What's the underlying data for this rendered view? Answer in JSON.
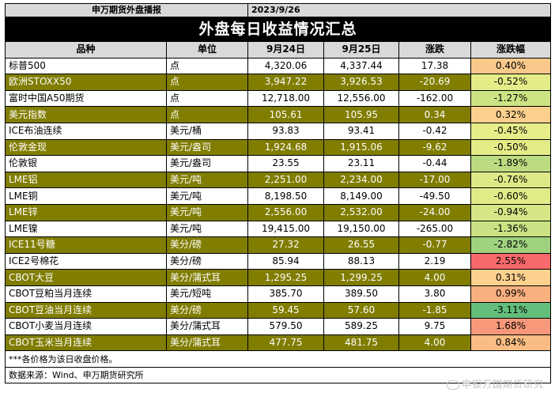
{
  "header": {
    "source_name": "申万期货外盘播报",
    "date": "2023/9/26"
  },
  "title": "外盘每日收益情况汇总",
  "columns": [
    "品种",
    "单位",
    "9月24日",
    "9月25日",
    "涨跌",
    "涨跌幅"
  ],
  "rows": [
    {
      "name": "标普500",
      "unit": "点",
      "d1": "4,320.06",
      "d2": "4,337.44",
      "chg": "17.38",
      "pct": "0.40%",
      "pct_color": "#f9c98b",
      "shade": false
    },
    {
      "name": "欧洲STOXX50",
      "unit": "点",
      "d1": "3,947.22",
      "d2": "3,926.53",
      "chg": "-20.69",
      "pct": "-0.52%",
      "pct_color": "#e4ec88",
      "shade": true
    },
    {
      "name": "富时中国A50期货",
      "unit": "点",
      "d1": "12,718.00",
      "d2": "12,556.00",
      "chg": "-162.00",
      "pct": "-1.27%",
      "pct_color": "#cde484",
      "shade": false
    },
    {
      "name": "美元指数",
      "unit": "点",
      "d1": "105.61",
      "d2": "105.95",
      "chg": "0.34",
      "pct": "0.32%",
      "pct_color": "#fbd08d",
      "shade": true
    },
    {
      "name": "ICE布油连续",
      "unit": "美元/桶",
      "d1": "93.83",
      "d2": "93.41",
      "chg": "-0.42",
      "pct": "-0.45%",
      "pct_color": "#e6ed89",
      "shade": false
    },
    {
      "name": "伦敦金现",
      "unit": "美元/盎司",
      "d1": "1,924.68",
      "d2": "1,915.06",
      "chg": "-9.62",
      "pct": "-0.50%",
      "pct_color": "#e4ec88",
      "shade": true
    },
    {
      "name": "伦敦银",
      "unit": "美元/盎司",
      "d1": "23.55",
      "d2": "23.11",
      "chg": "-0.44",
      "pct": "-1.89%",
      "pct_color": "#bcdc81",
      "shade": false
    },
    {
      "name": "LME铝",
      "unit": "美元/吨",
      "d1": "2,251.00",
      "d2": "2,234.00",
      "chg": "-17.00",
      "pct": "-0.76%",
      "pct_color": "#dde987",
      "shade": true
    },
    {
      "name": "LME铜",
      "unit": "美元/吨",
      "d1": "8,198.50",
      "d2": "8,149.00",
      "chg": "-49.50",
      "pct": "-0.60%",
      "pct_color": "#e1eb88",
      "shade": false
    },
    {
      "name": "LME锌",
      "unit": "美元/吨",
      "d1": "2,556.00",
      "d2": "2,532.00",
      "chg": "-24.00",
      "pct": "-0.94%",
      "pct_color": "#d6e686",
      "shade": true
    },
    {
      "name": "LME镍",
      "unit": "美元/吨",
      "d1": "19,415.00",
      "d2": "19,150.00",
      "chg": "-265.00",
      "pct": "-1.36%",
      "pct_color": "#cae283",
      "shade": false
    },
    {
      "name": "ICE11号糖",
      "unit": "美分/磅",
      "d1": "27.32",
      "d2": "26.55",
      "chg": "-0.77",
      "pct": "-2.82%",
      "pct_color": "#9fd27e",
      "shade": true
    },
    {
      "name": "ICE2号棉花",
      "unit": "美分/磅",
      "d1": "85.94",
      "d2": "88.13",
      "chg": "2.19",
      "pct": "2.55%",
      "pct_color": "#f8696b",
      "shade": false
    },
    {
      "name": "CBOT大豆",
      "unit": "美分/蒲式耳",
      "d1": "1,295.25",
      "d2": "1,299.25",
      "chg": "4.00",
      "pct": "0.31%",
      "pct_color": "#fbd18d",
      "shade": true
    },
    {
      "name": "CBOT豆粕当月连续",
      "unit": "美元/短吨",
      "d1": "385.70",
      "d2": "389.50",
      "chg": "3.80",
      "pct": "0.99%",
      "pct_color": "#f9b07f",
      "shade": false
    },
    {
      "name": "CBOT豆油当月连续",
      "unit": "美分/磅",
      "d1": "59.45",
      "d2": "57.60",
      "chg": "-1.85",
      "pct": "-3.11%",
      "pct_color": "#63be7b",
      "shade": true
    },
    {
      "name": "CBOT小麦当月连续",
      "unit": "美分/蒲式耳",
      "d1": "579.50",
      "d2": "589.25",
      "chg": "9.75",
      "pct": "1.68%",
      "pct_color": "#f7987a",
      "shade": false
    },
    {
      "name": "CBOT玉米当月连续",
      "unit": "美分/蒲式耳",
      "d1": "477.75",
      "d2": "481.75",
      "chg": "4.00",
      "pct": "0.84%",
      "pct_color": "#f9bc82",
      "shade": true
    }
  ],
  "note": "***各价格为该日收盘价格。",
  "source": "数据来源：Wind、申万期货研究所",
  "watermark": "申银万国期货研究",
  "shade_color": "#807d00"
}
